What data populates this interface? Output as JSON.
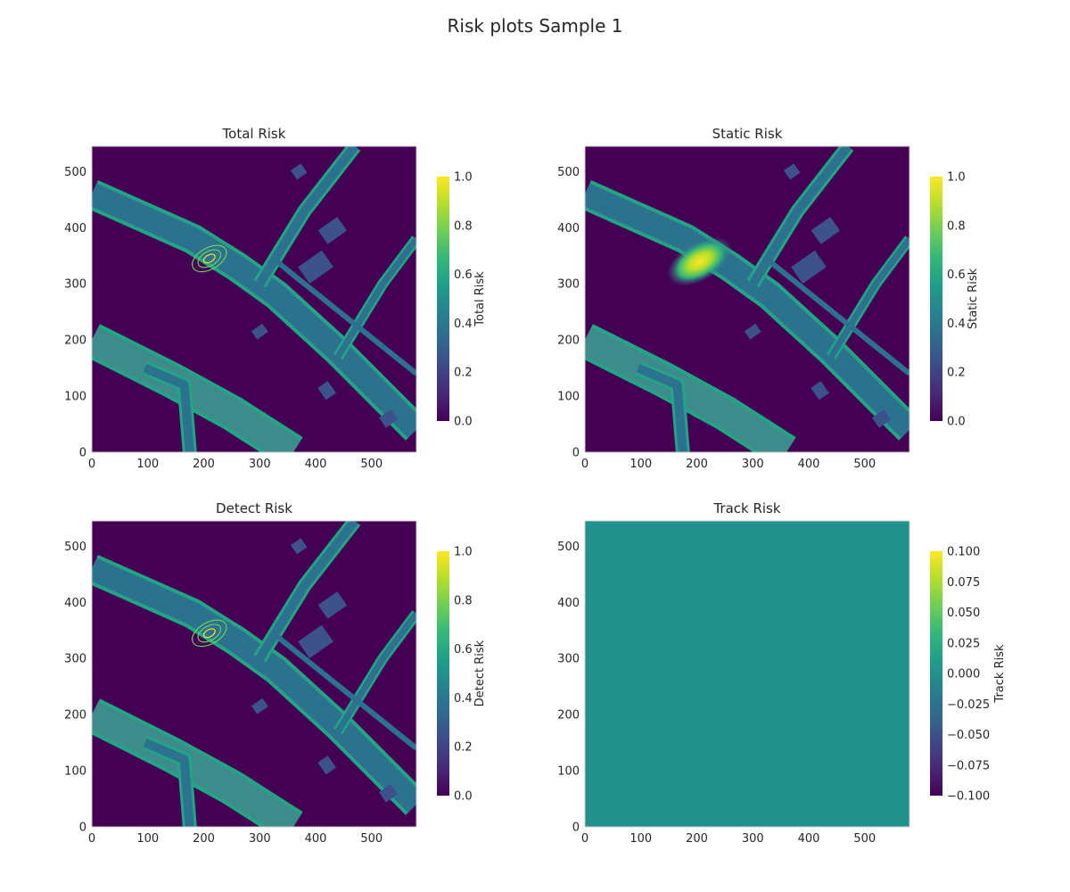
{
  "figure": {
    "title": "Risk plots Sample 1"
  },
  "colors": {
    "viridis": [
      "#440154",
      "#482878",
      "#3e4989",
      "#31688e",
      "#26828e",
      "#1f9e89",
      "#35b779",
      "#6ece58",
      "#b5de2b",
      "#fde725"
    ],
    "background": "#440154",
    "road_main": "#2c728e",
    "road_edge": "#21a585",
    "road_light": "#3d8c8b",
    "building": "#3b528b",
    "track_fill": "#21918c",
    "frame": "#cccccc"
  },
  "chart_data": [
    {
      "type": "heatmap",
      "title": "Total Risk",
      "xlim": [
        0,
        580
      ],
      "ylim": [
        0,
        545
      ],
      "xticks": [
        "0",
        "100",
        "200",
        "300",
        "400",
        "500"
      ],
      "yticks": [
        "0",
        "100",
        "200",
        "300",
        "400",
        "500"
      ],
      "colorbar": {
        "label": "Total Risk",
        "range": [
          0,
          1.0
        ],
        "ticks": [
          "0.0",
          "0.2",
          "0.4",
          "0.6",
          "0.8",
          "1.0"
        ]
      },
      "map": "road_network",
      "hotspot": {
        "x": 210,
        "y": 345,
        "style": "rings"
      }
    },
    {
      "type": "heatmap",
      "title": "Static Risk",
      "xlim": [
        0,
        580
      ],
      "ylim": [
        0,
        545
      ],
      "xticks": [
        "0",
        "100",
        "200",
        "300",
        "400",
        "500"
      ],
      "yticks": [
        "0",
        "100",
        "200",
        "300",
        "400",
        "500"
      ],
      "colorbar": {
        "label": "Static Risk",
        "range": [
          0,
          1.0
        ],
        "ticks": [
          "0.0",
          "0.2",
          "0.4",
          "0.6",
          "0.8",
          "1.0"
        ]
      },
      "map": "road_network",
      "hotspot": {
        "x": 205,
        "y": 340,
        "style": "glow"
      }
    },
    {
      "type": "heatmap",
      "title": "Detect Risk",
      "xlim": [
        0,
        580
      ],
      "ylim": [
        0,
        545
      ],
      "xticks": [
        "0",
        "100",
        "200",
        "300",
        "400",
        "500"
      ],
      "yticks": [
        "0",
        "100",
        "200",
        "300",
        "400",
        "500"
      ],
      "colorbar": {
        "label": "Detect Risk",
        "range": [
          0,
          1.0
        ],
        "ticks": [
          "0.0",
          "0.2",
          "0.4",
          "0.6",
          "0.8",
          "1.0"
        ]
      },
      "map": "road_network",
      "hotspot": {
        "x": 210,
        "y": 345,
        "style": "rings"
      }
    },
    {
      "type": "heatmap",
      "title": "Track Risk",
      "xlim": [
        0,
        580
      ],
      "ylim": [
        0,
        545
      ],
      "xticks": [
        "0",
        "100",
        "200",
        "300",
        "400",
        "500"
      ],
      "yticks": [
        "0",
        "100",
        "200",
        "300",
        "400",
        "500"
      ],
      "colorbar": {
        "label": "Track Risk",
        "range": [
          -0.1,
          0.1
        ],
        "ticks": [
          "−0.100",
          "−0.075",
          "−0.050",
          "−0.025",
          "0.000",
          "0.025",
          "0.050",
          "0.075",
          "0.100"
        ]
      },
      "map": "uniform",
      "uniform_value": 0.0
    }
  ]
}
